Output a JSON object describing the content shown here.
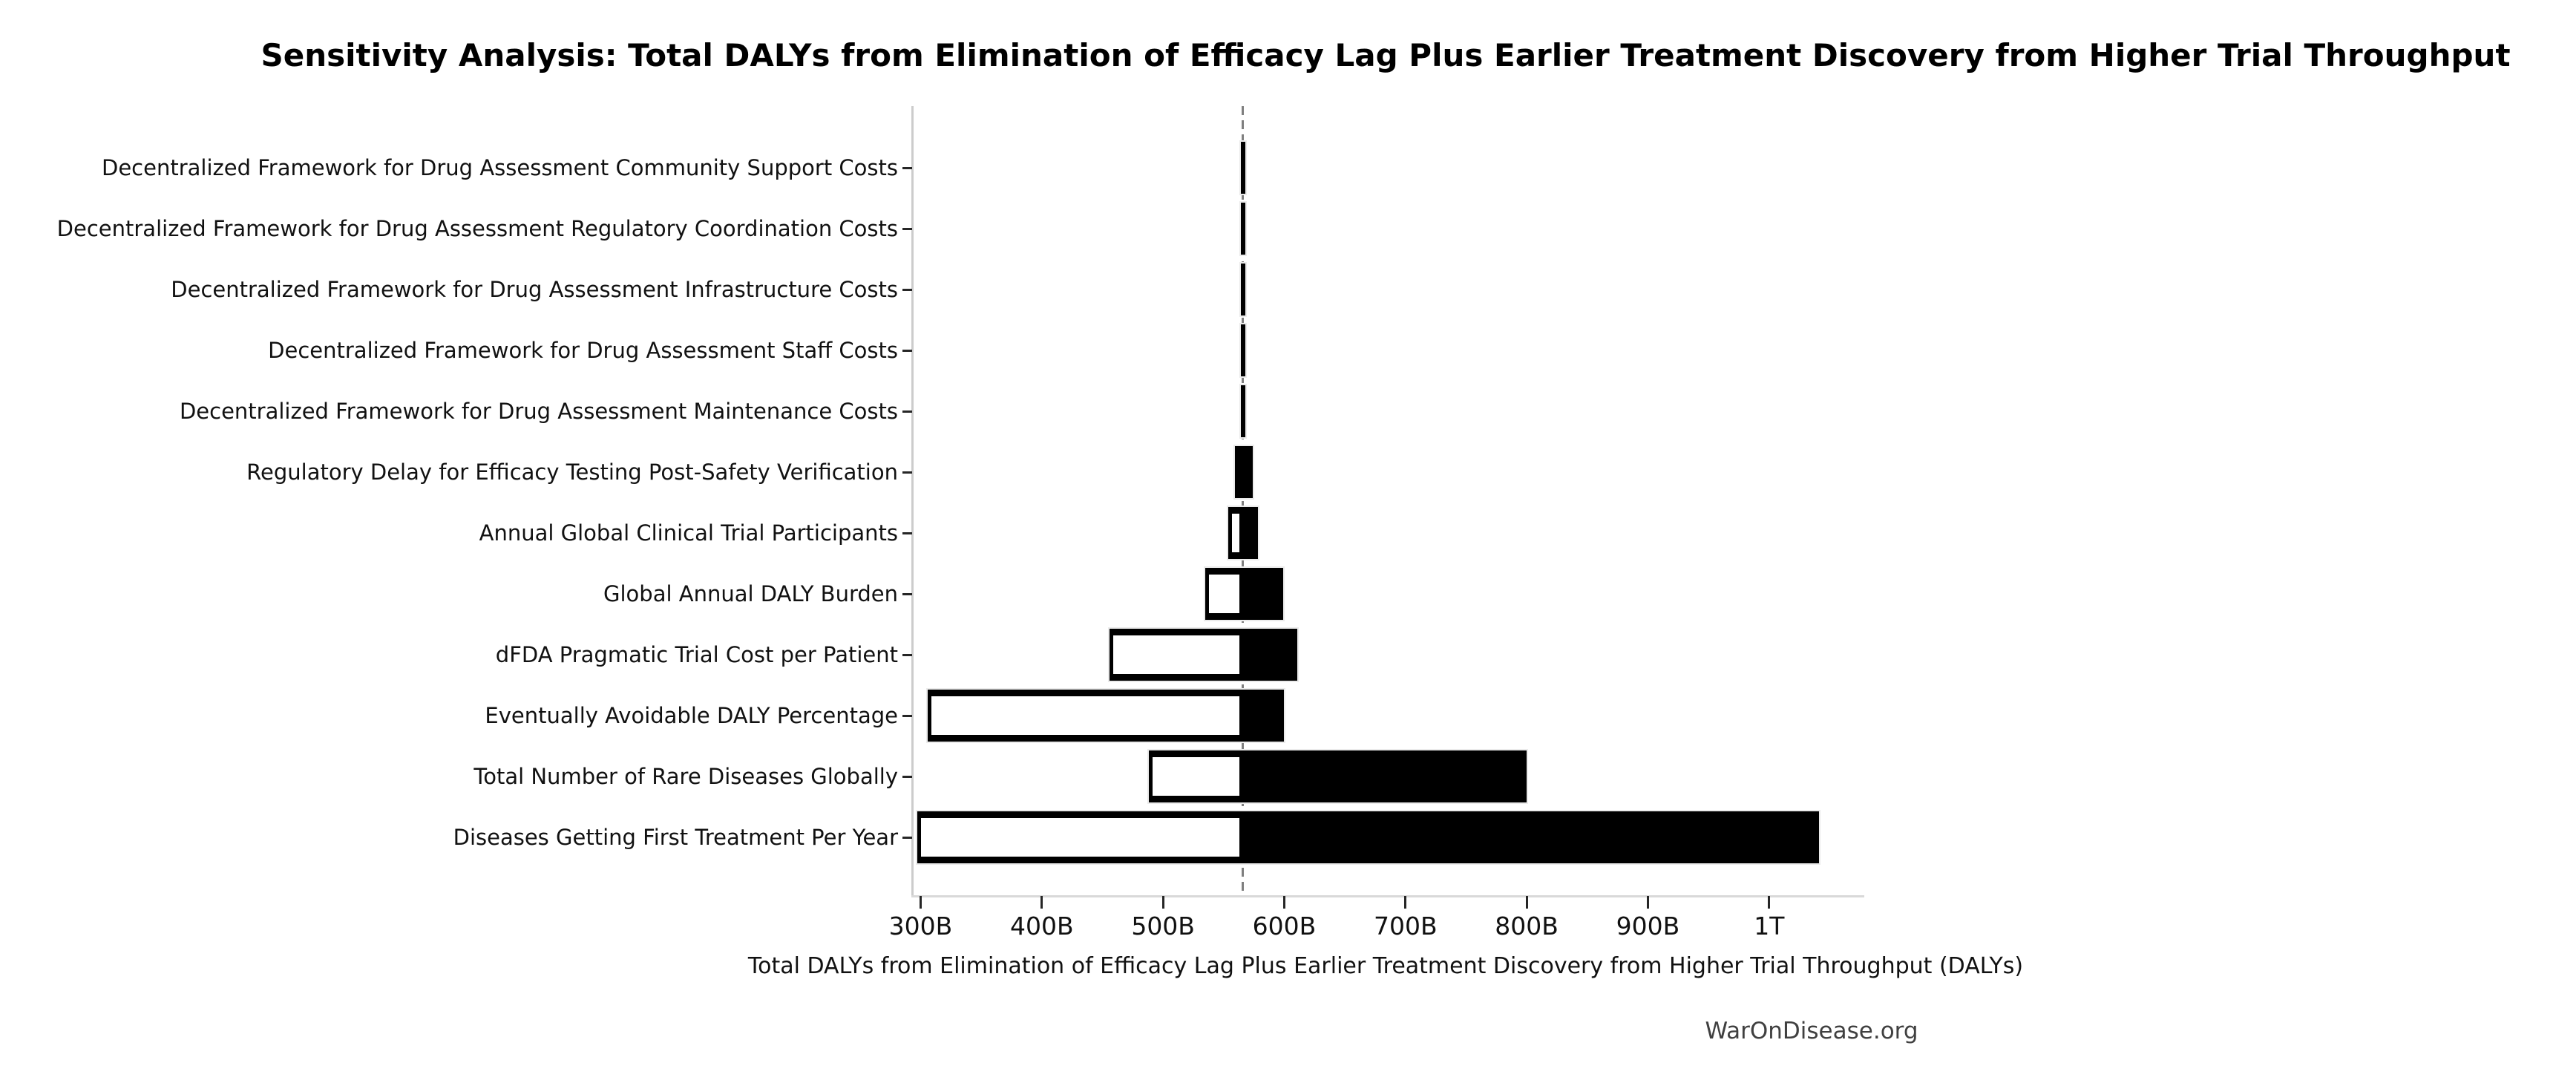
{
  "title": "Sensitivity Analysis: Total DALYs from Elimination of Efficacy Lag Plus Earlier Treatment Discovery from Higher Trial Throughput",
  "x_axis_label": "Total DALYs from Elimination of Efficacy Lag Plus Earlier Treatment Discovery from Higher Trial Throughput (DALYs)",
  "watermark": "WarOnDisease.org",
  "colors": {
    "background": "#ffffff",
    "bar_high_fill": "#000000",
    "bar_low_fill": "#ffffff",
    "bar_edge": "#000000",
    "baseline_dash": "#7f7f7f",
    "axis_spine": "#cccccc",
    "tick": "#262626",
    "text": "#111111",
    "watermark_text": "#404040"
  },
  "chart_data": {
    "type": "bar",
    "subtype": "tornado-sensitivity",
    "orientation": "horizontal",
    "value_unit": "DALYs (B = billions, T = trillions)",
    "baseline_value_billions": 566,
    "xlim_billions": [
      294,
      1078
    ],
    "grid": false,
    "legend": false,
    "x_ticks": [
      {
        "value_billions": 300,
        "label": "300B"
      },
      {
        "value_billions": 400,
        "label": "400B"
      },
      {
        "value_billions": 500,
        "label": "500B"
      },
      {
        "value_billions": 600,
        "label": "600B"
      },
      {
        "value_billions": 700,
        "label": "700B"
      },
      {
        "value_billions": 800,
        "label": "800B"
      },
      {
        "value_billions": 900,
        "label": "900B"
      },
      {
        "value_billions": 1000,
        "label": "1T"
      }
    ],
    "rows": [
      {
        "label": "Decentralized Framework for Drug Assessment Community Support Costs",
        "low_billions": 564.5,
        "high_billions": 568
      },
      {
        "label": "Decentralized Framework for Drug Assessment Regulatory Coordination Costs",
        "low_billions": 564.5,
        "high_billions": 568
      },
      {
        "label": "Decentralized Framework for Drug Assessment Infrastructure Costs",
        "low_billions": 564.5,
        "high_billions": 568
      },
      {
        "label": "Decentralized Framework for Drug Assessment Staff Costs",
        "low_billions": 564.5,
        "high_billions": 568
      },
      {
        "label": "Decentralized Framework for Drug Assessment Maintenance Costs",
        "low_billions": 564.5,
        "high_billions": 568
      },
      {
        "label": "Regulatory Delay for Efficacy Testing Post-Safety Verification",
        "low_billions": 559,
        "high_billions": 574
      },
      {
        "label": "Annual Global Clinical Trial Participants",
        "low_billions": 554,
        "high_billions": 578
      },
      {
        "label": "Global Annual DALY Burden",
        "low_billions": 535,
        "high_billions": 599
      },
      {
        "label": "dFDA Pragmatic Trial Cost per Patient",
        "low_billions": 456,
        "high_billions": 611
      },
      {
        "label": "Eventually Avoidable DALY Percentage",
        "low_billions": 306,
        "high_billions": 600
      },
      {
        "label": "Total Number of Rare Diseases Globally",
        "low_billions": 488,
        "high_billions": 800
      },
      {
        "label": "Diseases Getting First Treatment Per Year",
        "low_billions": 297,
        "high_billions": 1041
      }
    ]
  }
}
